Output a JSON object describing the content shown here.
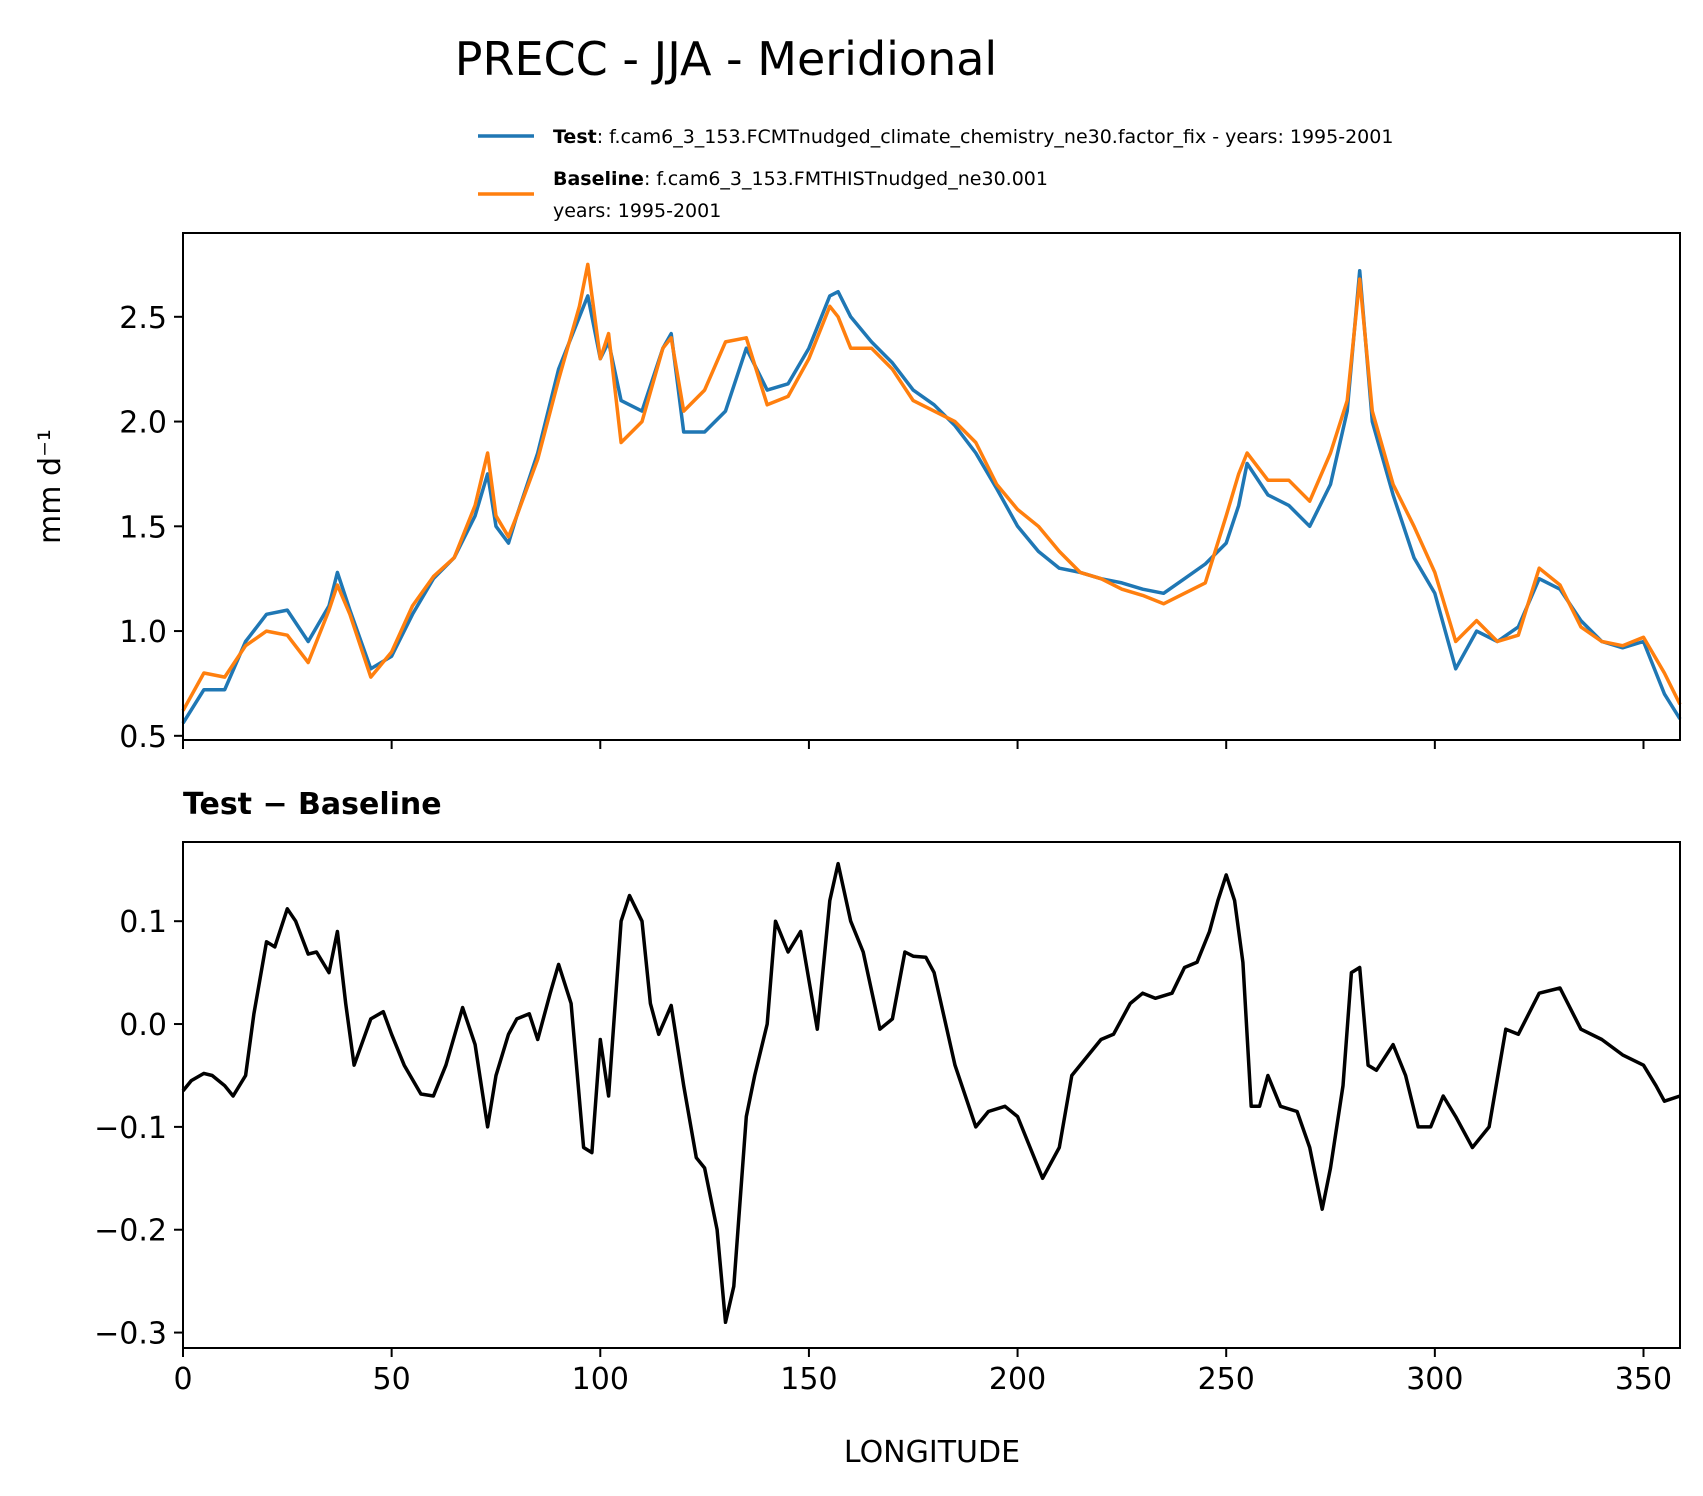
{
  "figure": {
    "title": "PRECC - JJA - Meridional"
  },
  "legend": [
    {
      "bold": "Test",
      "text": ": f.cam6_3_153.FCMTnudged_climate_chemistry_ne30.factor_fix - years: 1995-2001",
      "line2": "",
      "color": "#1f77b4"
    },
    {
      "bold": "Baseline",
      "text": ": f.cam6_3_153.FMTHISTnudged_ne30.001",
      "line2": "years: 1995-2001",
      "color": "#ff7f0e"
    }
  ],
  "chart_data": [
    {
      "type": "line",
      "title": "",
      "xlabel": "",
      "ylabel": "mm d⁻¹",
      "xlim": [
        0,
        358.75
      ],
      "ylim": [
        0.48,
        2.9
      ],
      "xticks": [
        0,
        50,
        100,
        150,
        200,
        250,
        300,
        350
      ],
      "yticks": [
        0.5,
        1.0,
        1.5,
        2.0,
        2.5
      ],
      "ytick_labels": [
        "0.5",
        "1.0",
        "1.5",
        "2.0",
        "2.5"
      ],
      "legend_position": "above plot",
      "grid": false,
      "x": [
        0,
        5,
        10,
        15,
        20,
        25,
        30,
        35,
        37,
        40,
        45,
        50,
        55,
        60,
        65,
        70,
        73,
        75,
        78,
        80,
        85,
        90,
        95,
        97,
        100,
        102,
        105,
        110,
        115,
        117,
        120,
        125,
        130,
        135,
        140,
        145,
        150,
        155,
        157,
        160,
        165,
        170,
        175,
        180,
        185,
        190,
        195,
        200,
        205,
        210,
        215,
        220,
        225,
        230,
        235,
        240,
        245,
        250,
        253,
        255,
        260,
        265,
        270,
        275,
        279,
        282,
        285,
        290,
        295,
        300,
        305,
        310,
        315,
        320,
        325,
        330,
        335,
        340,
        345,
        350,
        355,
        358.75
      ],
      "series": [
        {
          "name": "Test",
          "color": "#1f77b4",
          "values": [
            0.56,
            0.72,
            0.72,
            0.95,
            1.08,
            1.1,
            0.95,
            1.12,
            1.28,
            1.1,
            0.82,
            0.88,
            1.08,
            1.25,
            1.35,
            1.55,
            1.75,
            1.5,
            1.42,
            1.55,
            1.85,
            2.25,
            2.5,
            2.6,
            2.3,
            2.38,
            2.1,
            2.05,
            2.35,
            2.42,
            1.95,
            1.95,
            2.05,
            2.35,
            2.15,
            2.18,
            2.35,
            2.6,
            2.62,
            2.5,
            2.38,
            2.28,
            2.15,
            2.08,
            1.98,
            1.85,
            1.68,
            1.5,
            1.38,
            1.3,
            1.28,
            1.25,
            1.23,
            1.2,
            1.18,
            1.25,
            1.32,
            1.42,
            1.6,
            1.8,
            1.65,
            1.6,
            1.5,
            1.7,
            2.05,
            2.72,
            2.0,
            1.65,
            1.35,
            1.18,
            0.82,
            1.0,
            0.95,
            1.02,
            1.25,
            1.2,
            1.05,
            0.95,
            0.92,
            0.95,
            0.7,
            0.58
          ]
        },
        {
          "name": "Baseline",
          "color": "#ff7f0e",
          "values": [
            0.62,
            0.8,
            0.78,
            0.93,
            1.0,
            0.98,
            0.85,
            1.1,
            1.22,
            1.08,
            0.78,
            0.9,
            1.12,
            1.26,
            1.35,
            1.6,
            1.85,
            1.55,
            1.45,
            1.55,
            1.82,
            2.2,
            2.55,
            2.75,
            2.3,
            2.42,
            1.9,
            2.0,
            2.35,
            2.4,
            2.05,
            2.15,
            2.38,
            2.4,
            2.08,
            2.12,
            2.3,
            2.55,
            2.5,
            2.35,
            2.35,
            2.25,
            2.1,
            2.05,
            2.0,
            1.9,
            1.7,
            1.58,
            1.5,
            1.38,
            1.28,
            1.25,
            1.2,
            1.17,
            1.13,
            1.18,
            1.23,
            1.55,
            1.75,
            1.85,
            1.72,
            1.72,
            1.62,
            1.85,
            2.1,
            2.68,
            2.05,
            1.7,
            1.5,
            1.28,
            0.95,
            1.05,
            0.95,
            0.98,
            1.3,
            1.22,
            1.02,
            0.95,
            0.93,
            0.97,
            0.8,
            0.65
          ]
        }
      ]
    },
    {
      "type": "line",
      "title": "Test − Baseline",
      "xlabel": "LONGITUDE",
      "ylabel": "",
      "xlim": [
        0,
        358.75
      ],
      "ylim": [
        -0.315,
        0.177
      ],
      "xticks": [
        0,
        50,
        100,
        150,
        200,
        250,
        300,
        350
      ],
      "xtick_labels": [
        "0",
        "50",
        "100",
        "150",
        "200",
        "250",
        "300",
        "350"
      ],
      "yticks": [
        -0.3,
        -0.2,
        -0.1,
        0.0,
        0.1
      ],
      "ytick_labels": [
        "−0.3",
        "−0.2",
        "−0.1",
        "0.0",
        "0.1"
      ],
      "grid": false,
      "x": [
        0,
        2,
        5,
        7,
        10,
        12,
        15,
        17,
        20,
        22,
        25,
        27,
        30,
        32,
        35,
        37,
        39,
        41,
        45,
        48,
        50,
        53,
        57,
        60,
        63,
        67,
        70,
        73,
        75,
        78,
        80,
        83,
        85,
        88,
        90,
        93,
        96,
        98,
        100,
        102,
        105,
        107,
        110,
        112,
        114,
        117,
        120,
        123,
        125,
        128,
        130,
        132,
        135,
        137,
        140,
        142,
        145,
        148,
        152,
        155,
        157,
        160,
        163,
        167,
        170,
        173,
        175,
        178,
        180,
        185,
        190,
        193,
        197,
        200,
        203,
        206,
        210,
        213,
        217,
        220,
        223,
        227,
        230,
        233,
        237,
        240,
        243,
        246,
        248,
        250,
        252,
        254,
        256,
        258,
        260,
        263,
        267,
        270,
        273,
        275,
        278,
        280,
        282,
        284,
        286,
        290,
        293,
        296,
        299,
        302,
        305,
        309,
        313,
        317,
        320,
        325,
        330,
        335,
        340,
        345,
        350,
        353,
        355,
        358.75
      ],
      "series": [
        {
          "name": "",
          "color": "#000000",
          "values": [
            -0.065,
            -0.055,
            -0.048,
            -0.05,
            -0.06,
            -0.07,
            -0.05,
            0.01,
            0.08,
            0.075,
            0.112,
            0.1,
            0.068,
            0.07,
            0.05,
            0.09,
            0.02,
            -0.04,
            0.005,
            0.012,
            -0.01,
            -0.04,
            -0.068,
            -0.07,
            -0.04,
            0.016,
            -0.02,
            -0.1,
            -0.05,
            -0.01,
            0.005,
            0.01,
            -0.015,
            0.03,
            0.058,
            0.02,
            -0.12,
            -0.125,
            -0.015,
            -0.07,
            0.1,
            0.125,
            0.1,
            0.02,
            -0.01,
            0.018,
            -0.06,
            -0.13,
            -0.14,
            -0.2,
            -0.29,
            -0.255,
            -0.09,
            -0.05,
            0.0,
            0.1,
            0.07,
            0.09,
            -0.005,
            0.12,
            0.156,
            0.1,
            0.07,
            -0.005,
            0.005,
            0.07,
            0.066,
            0.065,
            0.05,
            -0.04,
            -0.1,
            -0.085,
            -0.08,
            -0.09,
            -0.12,
            -0.15,
            -0.12,
            -0.05,
            -0.03,
            -0.015,
            -0.01,
            0.02,
            0.03,
            0.025,
            0.03,
            0.055,
            0.06,
            0.09,
            0.12,
            0.145,
            0.12,
            0.06,
            -0.08,
            -0.08,
            -0.05,
            -0.08,
            -0.085,
            -0.12,
            -0.18,
            -0.14,
            -0.06,
            0.05,
            0.055,
            -0.04,
            -0.045,
            -0.02,
            -0.05,
            -0.1,
            -0.1,
            -0.07,
            -0.09,
            -0.12,
            -0.1,
            -0.005,
            -0.01,
            0.03,
            0.035,
            -0.005,
            -0.015,
            -0.03,
            -0.04,
            -0.06,
            -0.075,
            -0.07
          ]
        }
      ]
    }
  ]
}
